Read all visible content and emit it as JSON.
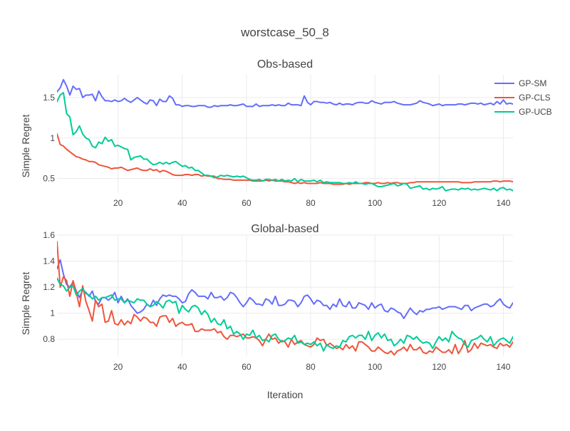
{
  "title": "worstcase_50_8",
  "xlabel": "Iteration",
  "legend": {
    "position": "top-right",
    "items": [
      {
        "name": "GP-SM",
        "color": "#636efa"
      },
      {
        "name": "GP-CLS",
        "color": "#ef553b"
      },
      {
        "name": "GP-UCB",
        "color": "#00cc96"
      }
    ]
  },
  "chart_data": [
    {
      "type": "line",
      "title": "Obs-based",
      "xlabel": "",
      "ylabel": "Simple Regret",
      "xlim": [
        1,
        143
      ],
      "ylim": [
        0.33,
        1.78
      ],
      "xticks": [
        20,
        40,
        60,
        80,
        100,
        120,
        140
      ],
      "yticks": [
        0.5,
        1,
        1.5
      ],
      "ytick_labels": [
        "0.5",
        "1",
        "1.5"
      ],
      "grid": true,
      "x_start": 1,
      "series": [
        {
          "name": "GP-SM",
          "color": "#636efa",
          "values": [
            1.57,
            1.62,
            1.72,
            1.64,
            1.53,
            1.64,
            1.6,
            1.61,
            1.5,
            1.53,
            1.53,
            1.54,
            1.46,
            1.58,
            1.51,
            1.46,
            1.46,
            1.45,
            1.47,
            1.45,
            1.46,
            1.49,
            1.46,
            1.44,
            1.47,
            1.5,
            1.47,
            1.44,
            1.42,
            1.47,
            1.46,
            1.4,
            1.48,
            1.45,
            1.45,
            1.52,
            1.49,
            1.41,
            1.41,
            1.39,
            1.4,
            1.4,
            1.39,
            1.39,
            1.4,
            1.4,
            1.4,
            1.38,
            1.38,
            1.4,
            1.39,
            1.4,
            1.4,
            1.4,
            1.41,
            1.4,
            1.4,
            1.41,
            1.42,
            1.39,
            1.39,
            1.39,
            1.42,
            1.39,
            1.4,
            1.4,
            1.4,
            1.41,
            1.4,
            1.41,
            1.4,
            1.4,
            1.43,
            1.41,
            1.41,
            1.41,
            1.4,
            1.52,
            1.44,
            1.41,
            1.45,
            1.45,
            1.44,
            1.44,
            1.43,
            1.44,
            1.42,
            1.41,
            1.43,
            1.41,
            1.42,
            1.42,
            1.41,
            1.43,
            1.44,
            1.44,
            1.43,
            1.43,
            1.46,
            1.44,
            1.43,
            1.42,
            1.44,
            1.44,
            1.44,
            1.45,
            1.43,
            1.42,
            1.41,
            1.41,
            1.41,
            1.42,
            1.43,
            1.46,
            1.44,
            1.43,
            1.42,
            1.4,
            1.41,
            1.42,
            1.4,
            1.41,
            1.41,
            1.41,
            1.41,
            1.42,
            1.42,
            1.41,
            1.42,
            1.43,
            1.43,
            1.42,
            1.43,
            1.41,
            1.42,
            1.43,
            1.41,
            1.45,
            1.42,
            1.47,
            1.42,
            1.43,
            1.42
          ]
        },
        {
          "name": "GP-CLS",
          "color": "#ef553b",
          "values": [
            1.05,
            0.92,
            0.9,
            0.86,
            0.83,
            0.8,
            0.77,
            0.76,
            0.74,
            0.73,
            0.71,
            0.71,
            0.7,
            0.67,
            0.66,
            0.65,
            0.64,
            0.62,
            0.63,
            0.63,
            0.64,
            0.62,
            0.6,
            0.61,
            0.62,
            0.63,
            0.61,
            0.6,
            0.6,
            0.62,
            0.6,
            0.61,
            0.58,
            0.6,
            0.59,
            0.57,
            0.55,
            0.54,
            0.54,
            0.54,
            0.55,
            0.55,
            0.54,
            0.55,
            0.55,
            0.53,
            0.54,
            0.53,
            0.53,
            0.53,
            0.5,
            0.5,
            0.49,
            0.49,
            0.49,
            0.48,
            0.48,
            0.48,
            0.48,
            0.48,
            0.48,
            0.47,
            0.47,
            0.47,
            0.47,
            0.48,
            0.47,
            0.48,
            0.47,
            0.47,
            0.47,
            0.46,
            0.46,
            0.45,
            0.44,
            0.45,
            0.44,
            0.45,
            0.44,
            0.44,
            0.44,
            0.44,
            0.45,
            0.44,
            0.44,
            0.44,
            0.43,
            0.43,
            0.43,
            0.43,
            0.44,
            0.43,
            0.44,
            0.44,
            0.44,
            0.44,
            0.45,
            0.45,
            0.44,
            0.44,
            0.45,
            0.44,
            0.44,
            0.45,
            0.44,
            0.45,
            0.45,
            0.44,
            0.44,
            0.44,
            0.45,
            0.45,
            0.46,
            0.46,
            0.46,
            0.46,
            0.46,
            0.46,
            0.46,
            0.46,
            0.46,
            0.46,
            0.46,
            0.46,
            0.46,
            0.46,
            0.45,
            0.45,
            0.45,
            0.45,
            0.46,
            0.46,
            0.46,
            0.46,
            0.46,
            0.46,
            0.47,
            0.47,
            0.46,
            0.47,
            0.47,
            0.47,
            0.46,
            0.47,
            0.45,
            0.46,
            0.46,
            0.47,
            0.47,
            0.46,
            0.46,
            0.47,
            0.46,
            0.46,
            0.46,
            0.46,
            0.46,
            0.46,
            0.47
          ]
        },
        {
          "name": "GP-UCB",
          "color": "#00cc96",
          "values": [
            1.45,
            1.53,
            1.56,
            1.3,
            1.26,
            1.04,
            1.08,
            1.15,
            1.05,
            1.0,
            0.98,
            0.9,
            0.88,
            0.95,
            0.93,
            1.01,
            0.96,
            0.98,
            0.9,
            0.91,
            0.89,
            0.87,
            0.86,
            0.73,
            0.76,
            0.77,
            0.78,
            0.74,
            0.74,
            0.7,
            0.67,
            0.68,
            0.7,
            0.68,
            0.7,
            0.68,
            0.7,
            0.71,
            0.68,
            0.65,
            0.66,
            0.63,
            0.64,
            0.6,
            0.6,
            0.57,
            0.54,
            0.54,
            0.53,
            0.51,
            0.52,
            0.54,
            0.53,
            0.54,
            0.53,
            0.52,
            0.53,
            0.52,
            0.53,
            0.51,
            0.49,
            0.48,
            0.48,
            0.49,
            0.47,
            0.49,
            0.49,
            0.48,
            0.49,
            0.47,
            0.49,
            0.47,
            0.48,
            0.47,
            0.5,
            0.46,
            0.49,
            0.47,
            0.47,
            0.47,
            0.48,
            0.46,
            0.48,
            0.45,
            0.46,
            0.45,
            0.45,
            0.45,
            0.45,
            0.44,
            0.44,
            0.45,
            0.44,
            0.46,
            0.44,
            0.44,
            0.43,
            0.44,
            0.44,
            0.42,
            0.4,
            0.4,
            0.41,
            0.42,
            0.43,
            0.44,
            0.41,
            0.42,
            0.44,
            0.43,
            0.38,
            0.39,
            0.4,
            0.41,
            0.37,
            0.38,
            0.36,
            0.38,
            0.37,
            0.38,
            0.4,
            0.35,
            0.36,
            0.37,
            0.37,
            0.36,
            0.38,
            0.37,
            0.38,
            0.36,
            0.37,
            0.36,
            0.37,
            0.38,
            0.37,
            0.36,
            0.38,
            0.35,
            0.38,
            0.39,
            0.36,
            0.37,
            0.35
          ]
        }
      ]
    },
    {
      "type": "line",
      "title": "Global-based",
      "xlabel": "Iteration",
      "ylabel": "Simple Regret",
      "xlim": [
        1,
        143
      ],
      "ylim": [
        0.67,
        1.6
      ],
      "xticks": [
        20,
        40,
        60,
        80,
        100,
        120,
        140
      ],
      "yticks": [
        0.8,
        1.0,
        1.2,
        1.4,
        1.6
      ],
      "ytick_labels": [
        "0.8",
        "1",
        "1.2",
        "1.4",
        "1.6"
      ],
      "grid": true,
      "x_start": 1,
      "series": [
        {
          "name": "GP-SM",
          "color": "#636efa",
          "values": [
            1.34,
            1.41,
            1.3,
            1.22,
            1.2,
            1.24,
            1.17,
            1.12,
            1.18,
            1.16,
            1.13,
            1.17,
            1.09,
            1.07,
            1.12,
            1.12,
            1.1,
            1.12,
            1.16,
            1.08,
            1.13,
            1.08,
            1.11,
            1.06,
            1.03,
            1.0,
            1.01,
            1.03,
            1.07,
            1.05,
            1.1,
            1.06,
            1.11,
            1.14,
            1.13,
            1.14,
            1.13,
            1.13,
            1.11,
            1.08,
            1.09,
            1.15,
            1.18,
            1.16,
            1.13,
            1.13,
            1.13,
            1.11,
            1.16,
            1.12,
            1.12,
            1.13,
            1.1,
            1.12,
            1.16,
            1.15,
            1.12,
            1.08,
            1.05,
            1.08,
            1.12,
            1.1,
            1.07,
            1.07,
            1.06,
            1.11,
            1.1,
            1.07,
            1.13,
            1.06,
            1.06,
            1.07,
            1.1,
            1.1,
            1.09,
            1.05,
            1.08,
            1.13,
            1.14,
            1.11,
            1.07,
            1.1,
            1.09,
            1.06,
            1.06,
            1.03,
            1.07,
            1.05,
            1.11,
            1.06,
            1.05,
            1.09,
            1.04,
            1.04,
            1.08,
            1.07,
            1.06,
            1.03,
            1.08,
            1.04,
            1.06,
            1.07,
            1.02,
            1.01,
            1.04,
            1.03,
            1.01,
            1.0,
            0.96,
            1.0,
            1.04,
            1.01,
            0.99,
            1.02,
            1.01,
            1.03,
            1.03,
            1.04,
            1.04,
            1.05,
            1.03,
            1.04,
            1.05,
            1.05,
            1.05,
            1.04,
            1.03,
            1.06,
            1.06,
            1.02,
            1.04,
            1.05,
            1.06,
            1.07,
            1.07,
            1.05,
            1.06,
            1.09,
            1.11,
            1.07,
            1.05,
            1.04,
            1.08,
            1.09,
            1.05,
            1.07,
            1.09,
            1.1,
            1.11,
            1.11,
            1.11,
            1.08,
            1.05,
            1.1,
            1.1,
            1.11,
            1.08,
            1.1,
            1.1
          ]
        },
        {
          "name": "GP-CLS",
          "color": "#ef553b",
          "values": [
            1.55,
            1.2,
            1.28,
            1.25,
            1.13,
            1.25,
            1.16,
            1.05,
            1.21,
            1.09,
            1.02,
            0.94,
            1.1,
            1.05,
            1.07,
            0.93,
            0.94,
            1.02,
            0.92,
            0.91,
            0.95,
            0.91,
            0.94,
            0.92,
            0.99,
            0.97,
            0.94,
            0.97,
            0.96,
            0.93,
            0.93,
            0.9,
            0.97,
            0.98,
            0.98,
            0.93,
            0.96,
            0.9,
            0.92,
            0.93,
            0.91,
            0.91,
            0.92,
            0.86,
            0.86,
            0.88,
            0.87,
            0.87,
            0.87,
            0.88,
            0.85,
            0.86,
            0.82,
            0.8,
            0.83,
            0.83,
            0.82,
            0.83,
            0.84,
            0.81,
            0.81,
            0.82,
            0.81,
            0.79,
            0.75,
            0.8,
            0.84,
            0.8,
            0.81,
            0.77,
            0.79,
            0.78,
            0.74,
            0.8,
            0.76,
            0.78,
            0.79,
            0.76,
            0.75,
            0.74,
            0.76,
            0.81,
            0.79,
            0.8,
            0.75,
            0.77,
            0.75,
            0.73,
            0.74,
            0.72,
            0.76,
            0.73,
            0.75,
            0.71,
            0.78,
            0.78,
            0.76,
            0.74,
            0.71,
            0.71,
            0.74,
            0.72,
            0.7,
            0.69,
            0.71,
            0.68,
            0.71,
            0.72,
            0.74,
            0.71,
            0.76,
            0.72,
            0.72,
            0.74,
            0.7,
            0.69,
            0.71,
            0.7,
            0.74,
            0.72,
            0.7,
            0.7,
            0.72,
            0.69,
            0.76,
            0.69,
            0.73,
            0.79,
            0.7,
            0.72,
            0.77,
            0.73,
            0.77,
            0.76,
            0.75,
            0.76,
            0.74,
            0.73,
            0.77,
            0.75,
            0.76,
            0.74,
            0.78,
            0.73,
            0.75,
            0.73,
            0.74,
            0.74
          ]
        },
        {
          "name": "GP-UCB",
          "color": "#00cc96",
          "values": [
            1.27,
            1.22,
            1.21,
            1.17,
            1.2,
            1.21,
            1.14,
            1.17,
            1.19,
            1.15,
            1.14,
            1.11,
            1.13,
            1.1,
            1.12,
            1.12,
            1.13,
            1.14,
            1.1,
            1.11,
            1.11,
            1.08,
            1.1,
            1.09,
            1.08,
            1.11,
            1.1,
            1.1,
            1.07,
            1.05,
            1.06,
            1.09,
            1.07,
            1.04,
            1.09,
            1.1,
            1.08,
            1.09,
            1.0,
            1.06,
            1.03,
            1.01,
            1.05,
            1.06,
            1.04,
            0.99,
            1.02,
            0.99,
            0.93,
            0.96,
            0.92,
            0.91,
            0.95,
            0.88,
            0.9,
            0.84,
            0.86,
            0.84,
            0.8,
            0.84,
            0.83,
            0.87,
            0.81,
            0.83,
            0.79,
            0.8,
            0.78,
            0.83,
            0.84,
            0.8,
            0.78,
            0.79,
            0.81,
            0.8,
            0.83,
            0.77,
            0.78,
            0.76,
            0.77,
            0.76,
            0.78,
            0.75,
            0.77,
            0.71,
            0.76,
            0.74,
            0.73,
            0.75,
            0.74,
            0.79,
            0.78,
            0.82,
            0.83,
            0.81,
            0.83,
            0.83,
            0.8,
            0.86,
            0.79,
            0.83,
            0.85,
            0.81,
            0.84,
            0.79,
            0.8,
            0.75,
            0.77,
            0.8,
            0.77,
            0.83,
            0.82,
            0.8,
            0.82,
            0.79,
            0.77,
            0.78,
            0.77,
            0.73,
            0.78,
            0.82,
            0.79,
            0.81,
            0.78,
            0.86,
            0.83,
            0.81,
            0.8,
            0.76,
            0.74,
            0.79,
            0.8,
            0.81,
            0.83,
            0.8,
            0.78,
            0.82,
            0.75,
            0.78,
            0.8,
            0.81,
            0.79,
            0.77,
            0.82,
            0.77,
            0.76
          ]
        }
      ]
    }
  ]
}
